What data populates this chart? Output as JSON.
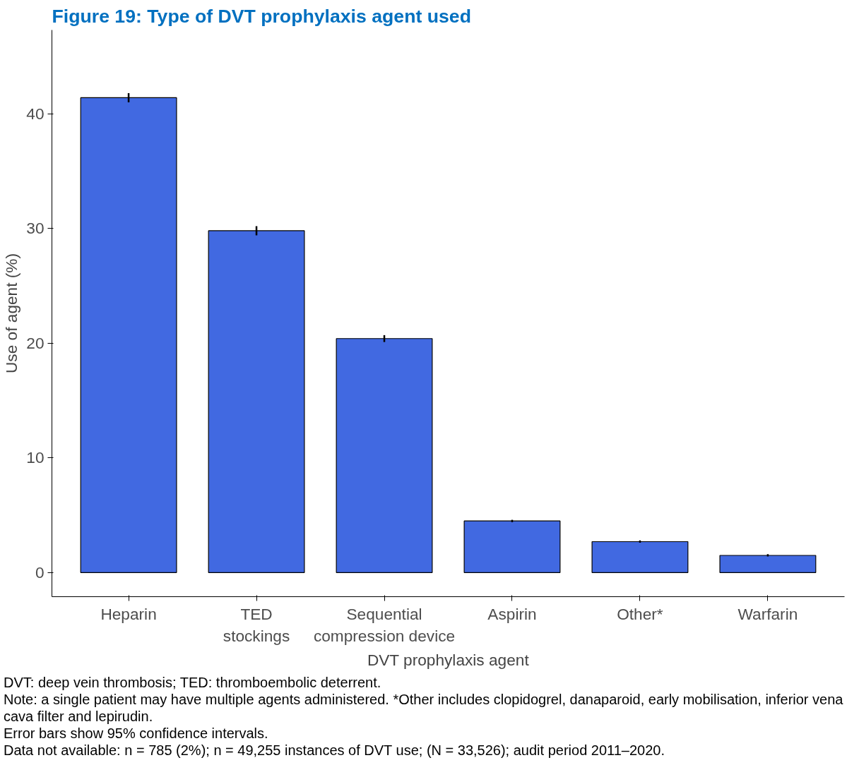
{
  "chart_data": {
    "type": "bar",
    "title": "Figure 19: Type of DVT prophylaxis agent used",
    "xlabel": "DVT prophylaxis agent",
    "ylabel": "Use of agent (%)",
    "categories": [
      "Heparin",
      "TED\nstockings",
      "Sequential\ncompression device",
      "Aspirin",
      "Other*",
      "Warfarin"
    ],
    "values": [
      41.4,
      29.8,
      20.4,
      4.5,
      2.7,
      1.5
    ],
    "errors": [
      0.4,
      0.4,
      0.3,
      0.1,
      0.1,
      0.1
    ],
    "color": "#4169e1",
    "ylim": [
      -2.1,
      47.3
    ],
    "yticks": [
      0,
      10,
      20,
      30,
      40
    ],
    "grid": false,
    "annotations": [
      "DVT: deep vein thrombosis; TED: thromboembolic deterrent.",
      "Note: a single patient may have multiple agents administered. *Other includes clopidogrel, danaparoid, early mobilisation, inferior vena cava filter and lepirudin.",
      "Error bars show 95% confidence intervals.",
      "Data not available: n = 785 (2%); n = 49,255 instances of DVT use; (N = 33,526); audit period 2011–2020."
    ]
  }
}
